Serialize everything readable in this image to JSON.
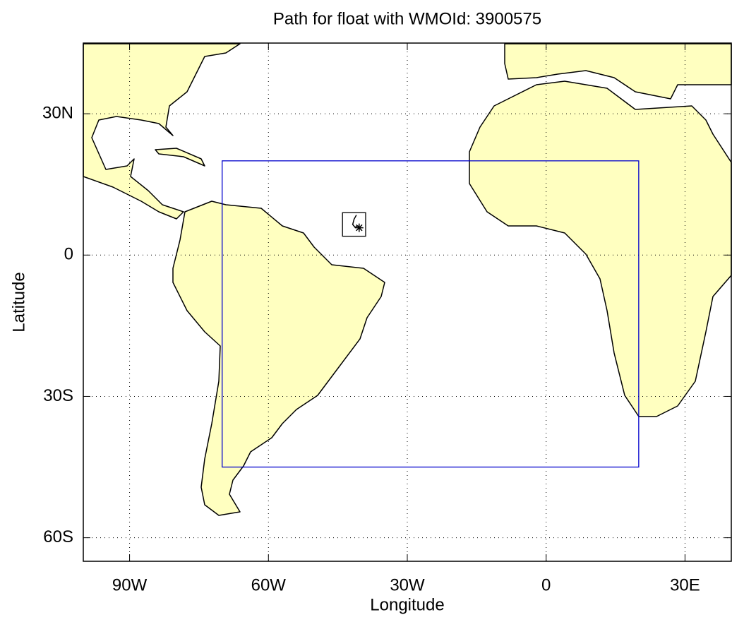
{
  "chart_data": {
    "type": "map",
    "title": "Path for float with WMOId: 3900575",
    "x_label": "Longitude",
    "y_label": "Latitude",
    "xlim": [
      -100,
      40
    ],
    "ylim": [
      -65,
      45
    ],
    "xticks": [
      {
        "value": -90,
        "label": "90W"
      },
      {
        "value": -60,
        "label": "60W"
      },
      {
        "value": -30,
        "label": "30W"
      },
      0,
      {
        "value": 30,
        "label": "30E"
      }
    ],
    "yticks": [
      {
        "value": -60,
        "label": "60S"
      },
      {
        "value": -30,
        "label": "30S"
      },
      0,
      {
        "value": 30,
        "label": "30N"
      }
    ],
    "grid": true,
    "land_color": "#ffffc0",
    "region": {
      "color": "#0000cc",
      "lon": [
        -70,
        20
      ],
      "lat": [
        -45,
        20
      ]
    },
    "float_box": {
      "color": "#000000",
      "lon": [
        -44,
        -39
      ],
      "lat": [
        4,
        9
      ]
    },
    "float_path": {
      "color": "#000000",
      "lon": [
        -41.0,
        -41.5,
        -41.8,
        -41.3,
        -40.7,
        -40.4
      ],
      "lat": [
        8.5,
        7.6,
        6.5,
        5.9,
        6.2,
        5.8
      ]
    }
  }
}
